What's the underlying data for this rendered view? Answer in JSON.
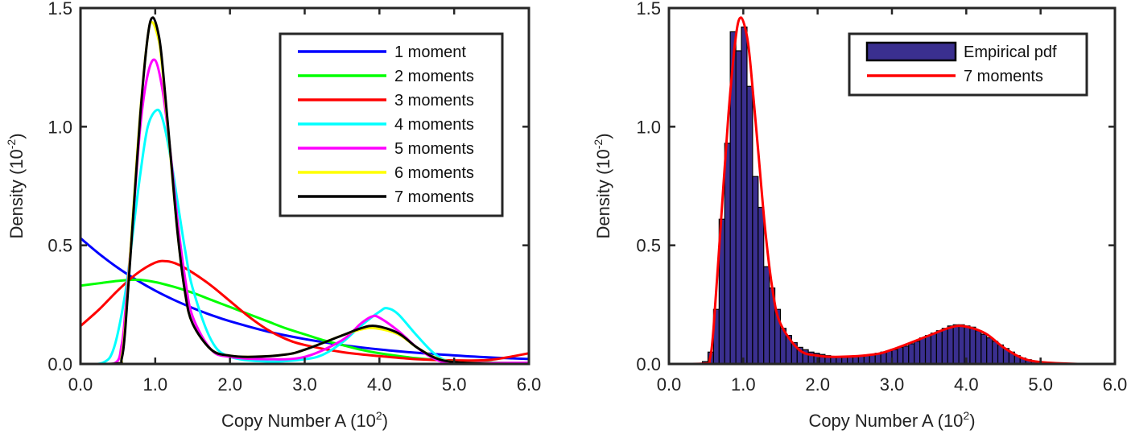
{
  "chart_data": [
    {
      "type": "line",
      "xlabel": "Copy Number A (10",
      "xlabel_exp": "2",
      "xlabel_close": ")",
      "ylabel": "Density (10",
      "ylabel_exp": "-2",
      "ylabel_close": ")",
      "xlim": [
        0,
        6
      ],
      "ylim": [
        0,
        1.5
      ],
      "xticks": [
        "0.0",
        "1.0",
        "2.0",
        "3.0",
        "4.0",
        "5.0",
        "6.0"
      ],
      "yticks": [
        "0.0",
        "0.5",
        "1.0",
        "1.5"
      ],
      "legend_position": "top-right",
      "series": [
        {
          "name": "1 moment",
          "color": "#0000ff",
          "x": [
            0,
            0.25,
            0.5,
            0.75,
            1,
            1.25,
            1.5,
            1.75,
            2,
            2.5,
            3,
            3.5,
            4,
            4.5,
            5,
            5.5,
            6
          ],
          "y": [
            0.53,
            0.464,
            0.405,
            0.354,
            0.309,
            0.27,
            0.236,
            0.206,
            0.18,
            0.137,
            0.105,
            0.08,
            0.061,
            0.047,
            0.036,
            0.027,
            0.021
          ]
        },
        {
          "name": "2 moments",
          "color": "#00ff00",
          "x": [
            0,
            0.25,
            0.5,
            0.75,
            1,
            1.25,
            1.5,
            1.75,
            2,
            2.25,
            2.5,
            2.75,
            3,
            3.25,
            3.5,
            3.75,
            4,
            4.5,
            5,
            5.5,
            6
          ],
          "y": [
            0.33,
            0.34,
            0.35,
            0.355,
            0.345,
            0.325,
            0.3,
            0.27,
            0.24,
            0.21,
            0.18,
            0.15,
            0.125,
            0.1,
            0.08,
            0.06,
            0.045,
            0.024,
            0.012,
            0.006,
            0.003
          ]
        },
        {
          "name": "3 moments",
          "color": "#ff0000",
          "x": [
            0,
            0.25,
            0.5,
            0.75,
            1,
            1.15,
            1.3,
            1.5,
            1.75,
            2,
            2.25,
            2.5,
            2.75,
            3,
            3.5,
            4,
            4.5,
            5,
            5.5,
            6
          ],
          "y": [
            0.16,
            0.23,
            0.31,
            0.38,
            0.427,
            0.433,
            0.42,
            0.385,
            0.33,
            0.265,
            0.2,
            0.145,
            0.105,
            0.08,
            0.05,
            0.033,
            0.02,
            0.015,
            0.018,
            0.045
          ]
        },
        {
          "name": "4 moments",
          "color": "#00ffff",
          "x": [
            0,
            0.3,
            0.45,
            0.6,
            0.7,
            0.8,
            0.9,
            1.02,
            1.1,
            1.2,
            1.3,
            1.4,
            1.5,
            1.75,
            2,
            2.5,
            3,
            3.25,
            3.5,
            3.75,
            4,
            4.1,
            4.25,
            4.5,
            4.75,
            5,
            5.5,
            6
          ],
          "y": [
            0,
            0.005,
            0.07,
            0.3,
            0.55,
            0.8,
            1.0,
            1.07,
            1.03,
            0.88,
            0.68,
            0.48,
            0.32,
            0.1,
            0.03,
            0.01,
            0.02,
            0.04,
            0.09,
            0.16,
            0.22,
            0.235,
            0.21,
            0.12,
            0.04,
            0.005,
            0,
            0
          ]
        },
        {
          "name": "5 moments",
          "color": "#ff00ff",
          "x": [
            0,
            0.45,
            0.55,
            0.6,
            0.7,
            0.8,
            0.9,
            1.0,
            1.1,
            1.2,
            1.3,
            1.4,
            1.5,
            1.75,
            2,
            2.5,
            3,
            3.5,
            3.75,
            3.9,
            4,
            4.25,
            4.5,
            4.75,
            5,
            6
          ],
          "y": [
            0,
            0.002,
            0.08,
            0.22,
            0.6,
            1.0,
            1.22,
            1.28,
            1.15,
            0.9,
            0.6,
            0.36,
            0.2,
            0.06,
            0.03,
            0.02,
            0.03,
            0.1,
            0.17,
            0.2,
            0.195,
            0.14,
            0.07,
            0.02,
            0.005,
            0.005
          ]
        },
        {
          "name": "6 moments",
          "color": "#ffff00",
          "x": [
            0,
            0.5,
            0.55,
            0.6,
            0.7,
            0.8,
            0.9,
            0.96,
            1.05,
            1.1,
            1.2,
            1.3,
            1.4,
            1.5,
            1.75,
            2,
            2.3,
            2.75,
            3,
            3.5,
            3.75,
            3.95,
            4.25,
            4.5,
            4.75,
            5,
            5.5,
            6
          ],
          "y": [
            0,
            0.002,
            0.03,
            0.17,
            0.62,
            1.06,
            1.38,
            1.44,
            1.36,
            1.23,
            0.89,
            0.55,
            0.3,
            0.17,
            0.06,
            0.035,
            0.03,
            0.04,
            0.06,
            0.12,
            0.145,
            0.15,
            0.125,
            0.07,
            0.027,
            0.008,
            0,
            0
          ]
        },
        {
          "name": "7 moments",
          "color": "#000000",
          "x": [
            0,
            0.5,
            0.55,
            0.6,
            0.7,
            0.8,
            0.9,
            0.97,
            1.05,
            1.1,
            1.2,
            1.3,
            1.4,
            1.5,
            1.75,
            2,
            2.3,
            2.75,
            3,
            3.5,
            3.75,
            3.95,
            4.25,
            4.5,
            4.75,
            5,
            5.5,
            6
          ],
          "y": [
            0,
            0.002,
            0.02,
            0.15,
            0.6,
            1.05,
            1.38,
            1.46,
            1.38,
            1.25,
            0.9,
            0.55,
            0.3,
            0.17,
            0.06,
            0.035,
            0.03,
            0.04,
            0.06,
            0.12,
            0.15,
            0.16,
            0.13,
            0.07,
            0.025,
            0.008,
            0,
            0
          ]
        }
      ]
    },
    {
      "type": "bar",
      "xlabel": "Copy Number A (10",
      "xlabel_exp": "2",
      "xlabel_close": ")",
      "ylabel": "Density (10",
      "ylabel_exp": "-2",
      "ylabel_close": ")",
      "xlim": [
        0,
        6
      ],
      "ylim": [
        0,
        1.5
      ],
      "xticks": [
        "0.0",
        "1.0",
        "2.0",
        "3.0",
        "4.0",
        "5.0",
        "6.0"
      ],
      "yticks": [
        "0.0",
        "0.5",
        "1.0",
        "1.5"
      ],
      "legend_position": "top-right",
      "histogram": {
        "name": "Empirical pdf",
        "color": "#3a2f8f",
        "bin_start": 0.45,
        "bin_width": 0.075,
        "values": [
          0.01,
          0.05,
          0.23,
          0.61,
          0.93,
          1.4,
          1.32,
          1.42,
          1.17,
          0.79,
          0.66,
          0.41,
          0.32,
          0.23,
          0.15,
          0.12,
          0.09,
          0.07,
          0.06,
          0.05,
          0.045,
          0.04,
          0.035,
          0.03,
          0.03,
          0.03,
          0.03,
          0.032,
          0.035,
          0.038,
          0.04,
          0.045,
          0.05,
          0.055,
          0.06,
          0.07,
          0.075,
          0.085,
          0.095,
          0.11,
          0.12,
          0.13,
          0.14,
          0.15,
          0.16,
          0.165,
          0.165,
          0.16,
          0.155,
          0.14,
          0.125,
          0.11,
          0.095,
          0.08,
          0.065,
          0.05,
          0.035,
          0.025,
          0.018,
          0.012,
          0.008,
          0.005,
          0.003,
          0.002,
          0.001,
          0.001
        ]
      },
      "series": [
        {
          "name": "7 moments",
          "color": "#ff0000",
          "x": [
            0,
            0.5,
            0.55,
            0.6,
            0.7,
            0.8,
            0.9,
            0.97,
            1.05,
            1.1,
            1.2,
            1.3,
            1.4,
            1.5,
            1.75,
            2,
            2.3,
            2.75,
            3,
            3.5,
            3.75,
            3.95,
            4.25,
            4.5,
            4.75,
            5,
            5.5,
            6
          ],
          "y": [
            0,
            0.002,
            0.02,
            0.15,
            0.6,
            1.05,
            1.38,
            1.46,
            1.38,
            1.25,
            0.9,
            0.55,
            0.3,
            0.17,
            0.06,
            0.035,
            0.03,
            0.04,
            0.06,
            0.12,
            0.15,
            0.16,
            0.13,
            0.07,
            0.025,
            0.008,
            0,
            0
          ]
        }
      ]
    }
  ]
}
